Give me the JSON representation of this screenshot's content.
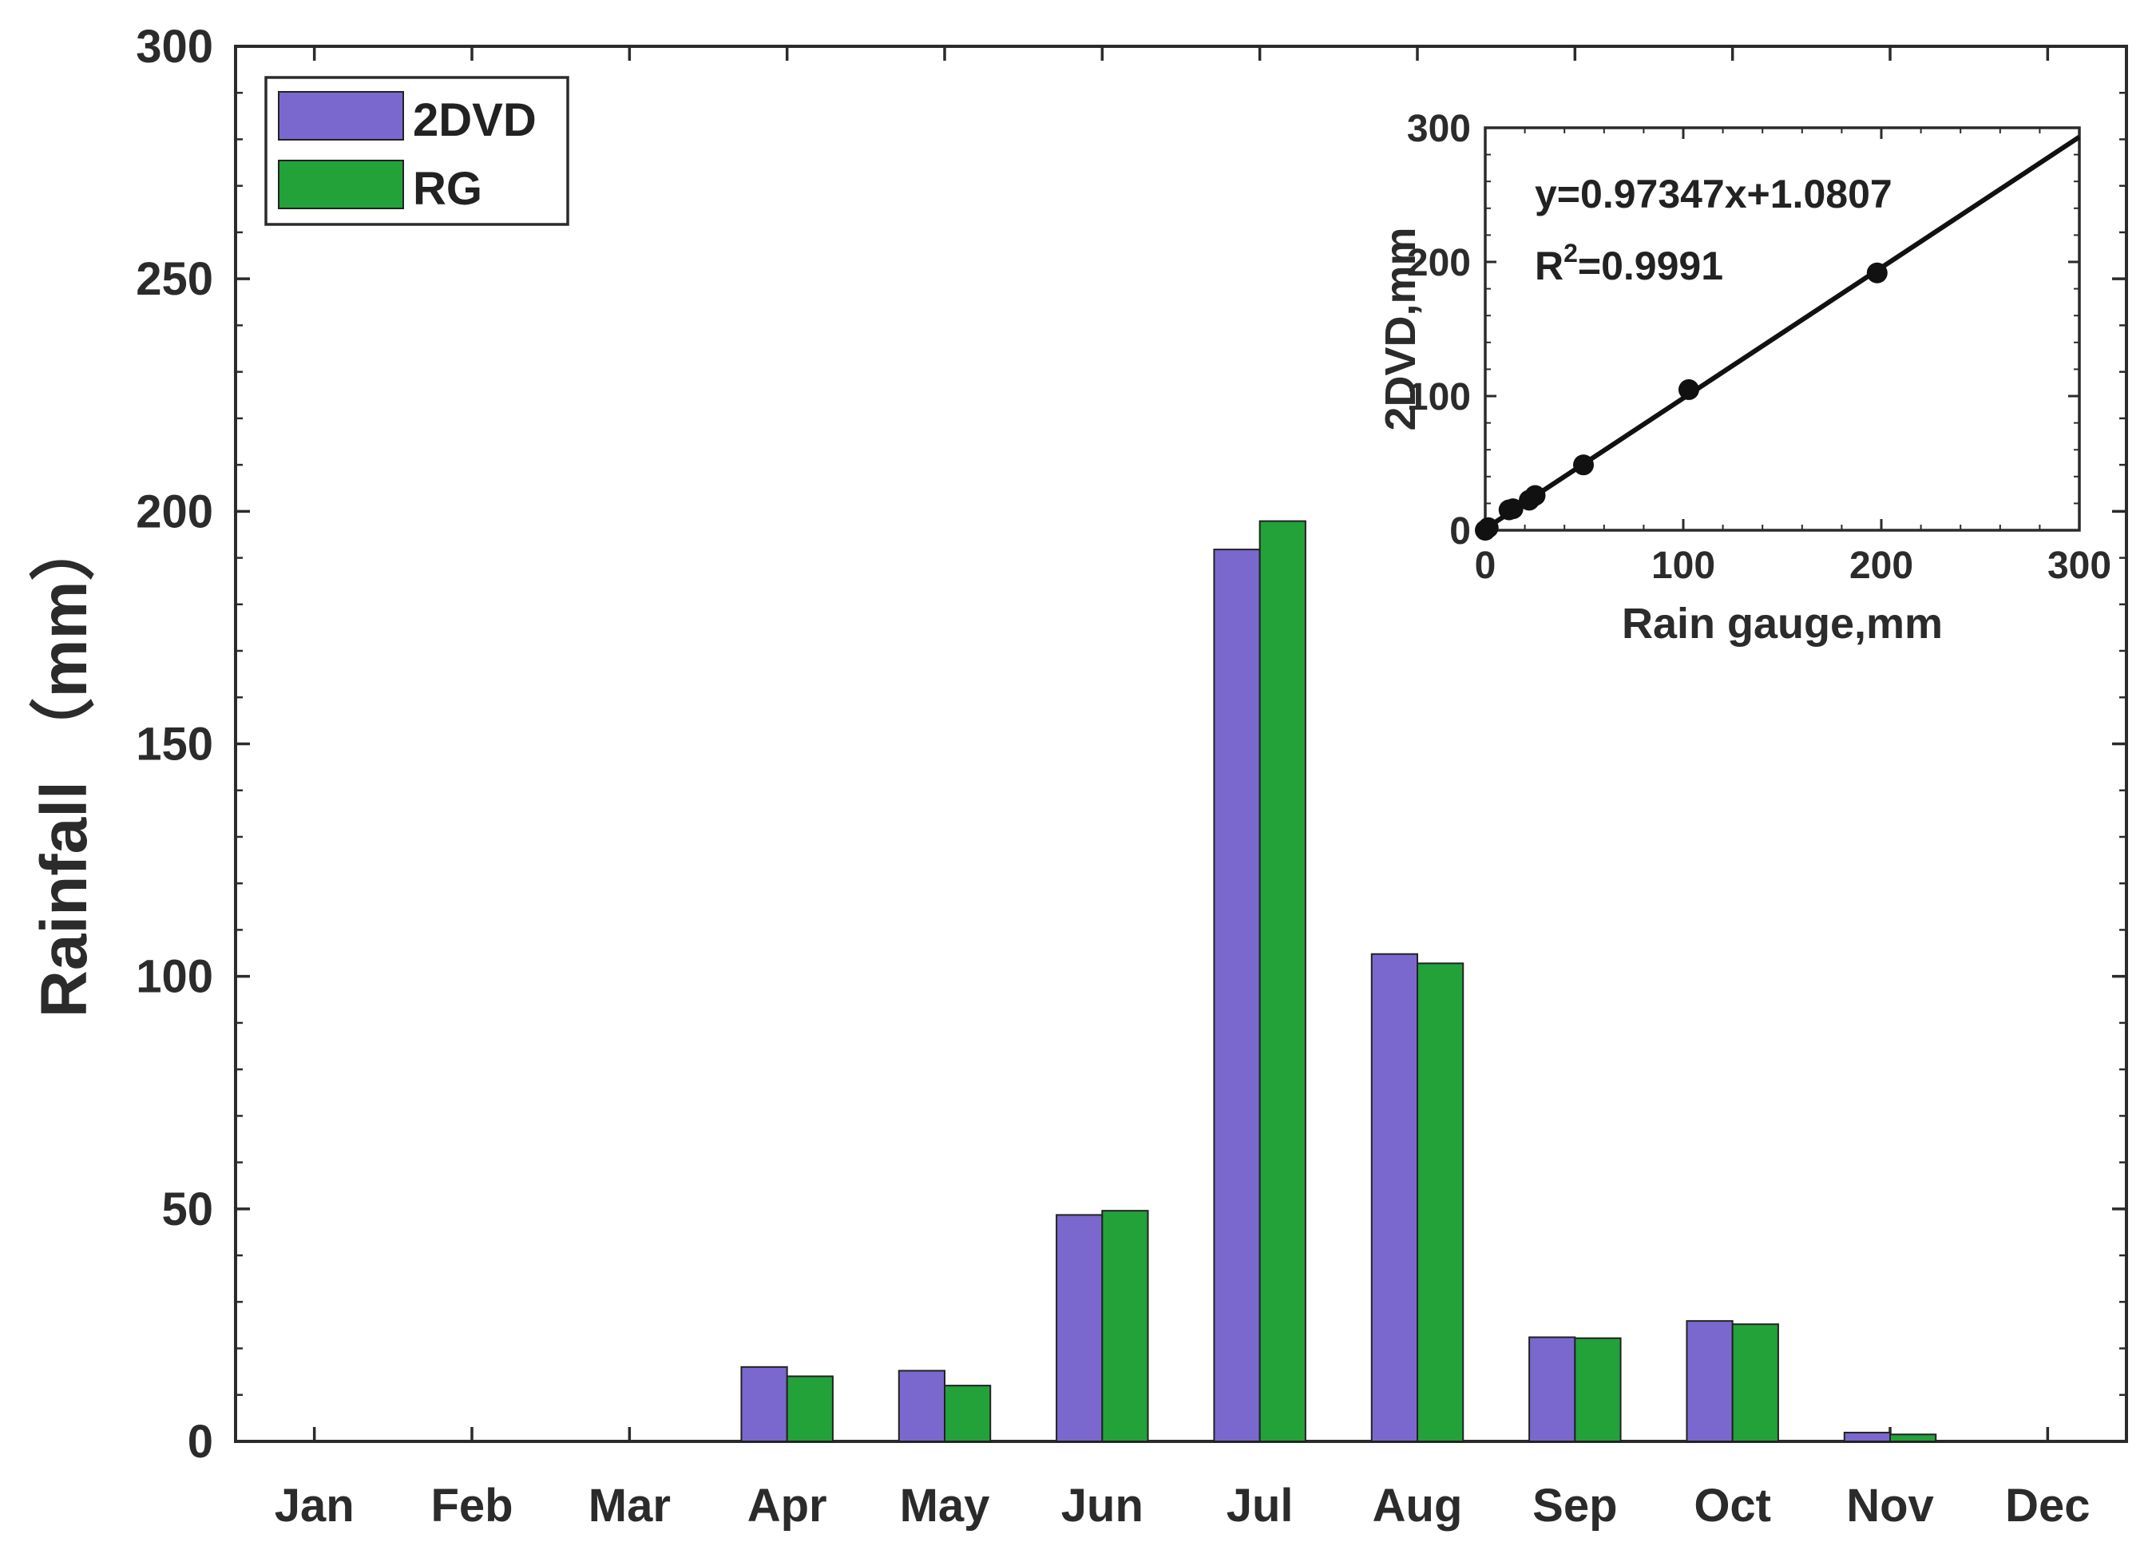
{
  "chart_data": [
    {
      "type": "bar",
      "categories": [
        "Jan",
        "Feb",
        "Mar",
        "Apr",
        "May",
        "Jun",
        "Jul",
        "Aug",
        "Sep",
        "Oct",
        "Nov",
        "Dec"
      ],
      "series": [
        {
          "name": "2DVD",
          "color": "#7b68ce",
          "values": [
            0,
            0,
            0,
            16,
            15.2,
            48.7,
            191.8,
            104.8,
            22.4,
            25.9,
            1.9,
            0
          ]
        },
        {
          "name": "RG",
          "color": "#23a23a",
          "values": [
            0,
            0,
            0,
            14,
            12,
            49.6,
            197.9,
            102.8,
            22.2,
            25.2,
            1.5,
            0
          ]
        }
      ],
      "ylabel": "Rainfall （mm）",
      "xlabel": "",
      "ylim": [
        0,
        300
      ],
      "yticks": [
        "0",
        "50",
        "100",
        "150",
        "200",
        "250",
        "300"
      ],
      "legend": "top-left",
      "grid": false
    },
    {
      "type": "scatter",
      "xlabel": "Rain gauge,mm",
      "ylabel": "2DVD,mm",
      "xlim": [
        0,
        300
      ],
      "ylim": [
        0,
        300
      ],
      "xticks": [
        "0",
        "100",
        "200",
        "300"
      ],
      "yticks": [
        "0",
        "100",
        "200",
        "300"
      ],
      "x": [
        0,
        1.5,
        12,
        14,
        22.2,
        25.2,
        49.6,
        102.8,
        197.9
      ],
      "y": [
        0,
        1.9,
        15.2,
        16,
        22.4,
        25.9,
        48.7,
        104.8,
        191.8
      ],
      "fit": {
        "slope": 0.97347,
        "intercept": 1.0807
      },
      "equation": "y=0.97347x+1.0807",
      "r2_prefix": "R",
      "r2_sup": "2",
      "r2_value": "=0.9991",
      "placement": "top-right inset"
    }
  ]
}
